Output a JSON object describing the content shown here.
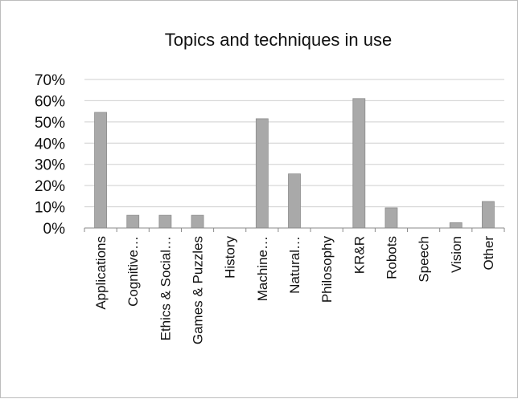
{
  "chart_data": {
    "type": "bar",
    "title": "Topics and techniques in use",
    "xlabel": "",
    "ylabel": "",
    "categories": [
      "Applications",
      "Cognitive…",
      "Ethics & Social…",
      "Games & Puzzles",
      "History",
      "Machine…",
      "Natural…",
      "Philosophy",
      "KR&R",
      "Robots",
      "Speech",
      "Vision",
      "Other"
    ],
    "values": [
      0.545,
      0.06,
      0.06,
      0.06,
      0.0,
      0.515,
      0.255,
      0.0,
      0.61,
      0.095,
      0.0,
      0.025,
      0.125
    ],
    "ylim": [
      0,
      0.7
    ],
    "yticks": [
      "0%",
      "10%",
      "20%",
      "30%",
      "40%",
      "50%",
      "60%",
      "70%"
    ],
    "grid": true,
    "legend": "none",
    "bar_color": "#a9a9a9"
  }
}
